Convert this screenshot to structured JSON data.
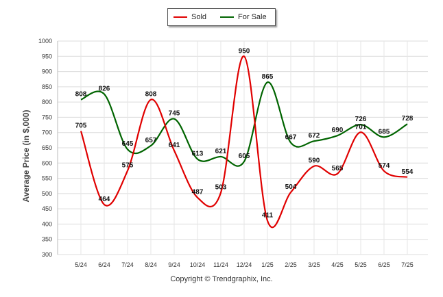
{
  "legend": {
    "sold_label": "Sold",
    "sold_color": "#e00000",
    "for_sale_label": "For Sale",
    "for_sale_color": "#006400"
  },
  "footer": {
    "copyright": "Copyright © Trendgraphix, Inc."
  },
  "chart_data": {
    "type": "line",
    "ylabel": "Average Price (in $,000)",
    "xlabel": "",
    "ylim": [
      300,
      1000
    ],
    "yticks": [
      300,
      350,
      400,
      450,
      500,
      550,
      600,
      650,
      700,
      750,
      800,
      850,
      900,
      950,
      1000
    ],
    "categories": [
      "5/24",
      "6/24",
      "7/24",
      "8/24",
      "9/24",
      "10/24",
      "11/24",
      "12/24",
      "1/25",
      "2/25",
      "3/25",
      "4/25",
      "5/25",
      "6/25",
      "7/25"
    ],
    "grid": true,
    "legend_position": "top-center",
    "series": [
      {
        "name": "Sold",
        "color": "#e00000",
        "values": [
          705,
          464,
          575,
          808,
          641,
          487,
          503,
          950,
          411,
          504,
          590,
          565,
          701,
          574,
          554
        ]
      },
      {
        "name": "For Sale",
        "color": "#006400",
        "values": [
          808,
          826,
          645,
          657,
          745,
          613,
          621,
          605,
          865,
          667,
          672,
          690,
          726,
          685,
          728
        ]
      }
    ]
  }
}
